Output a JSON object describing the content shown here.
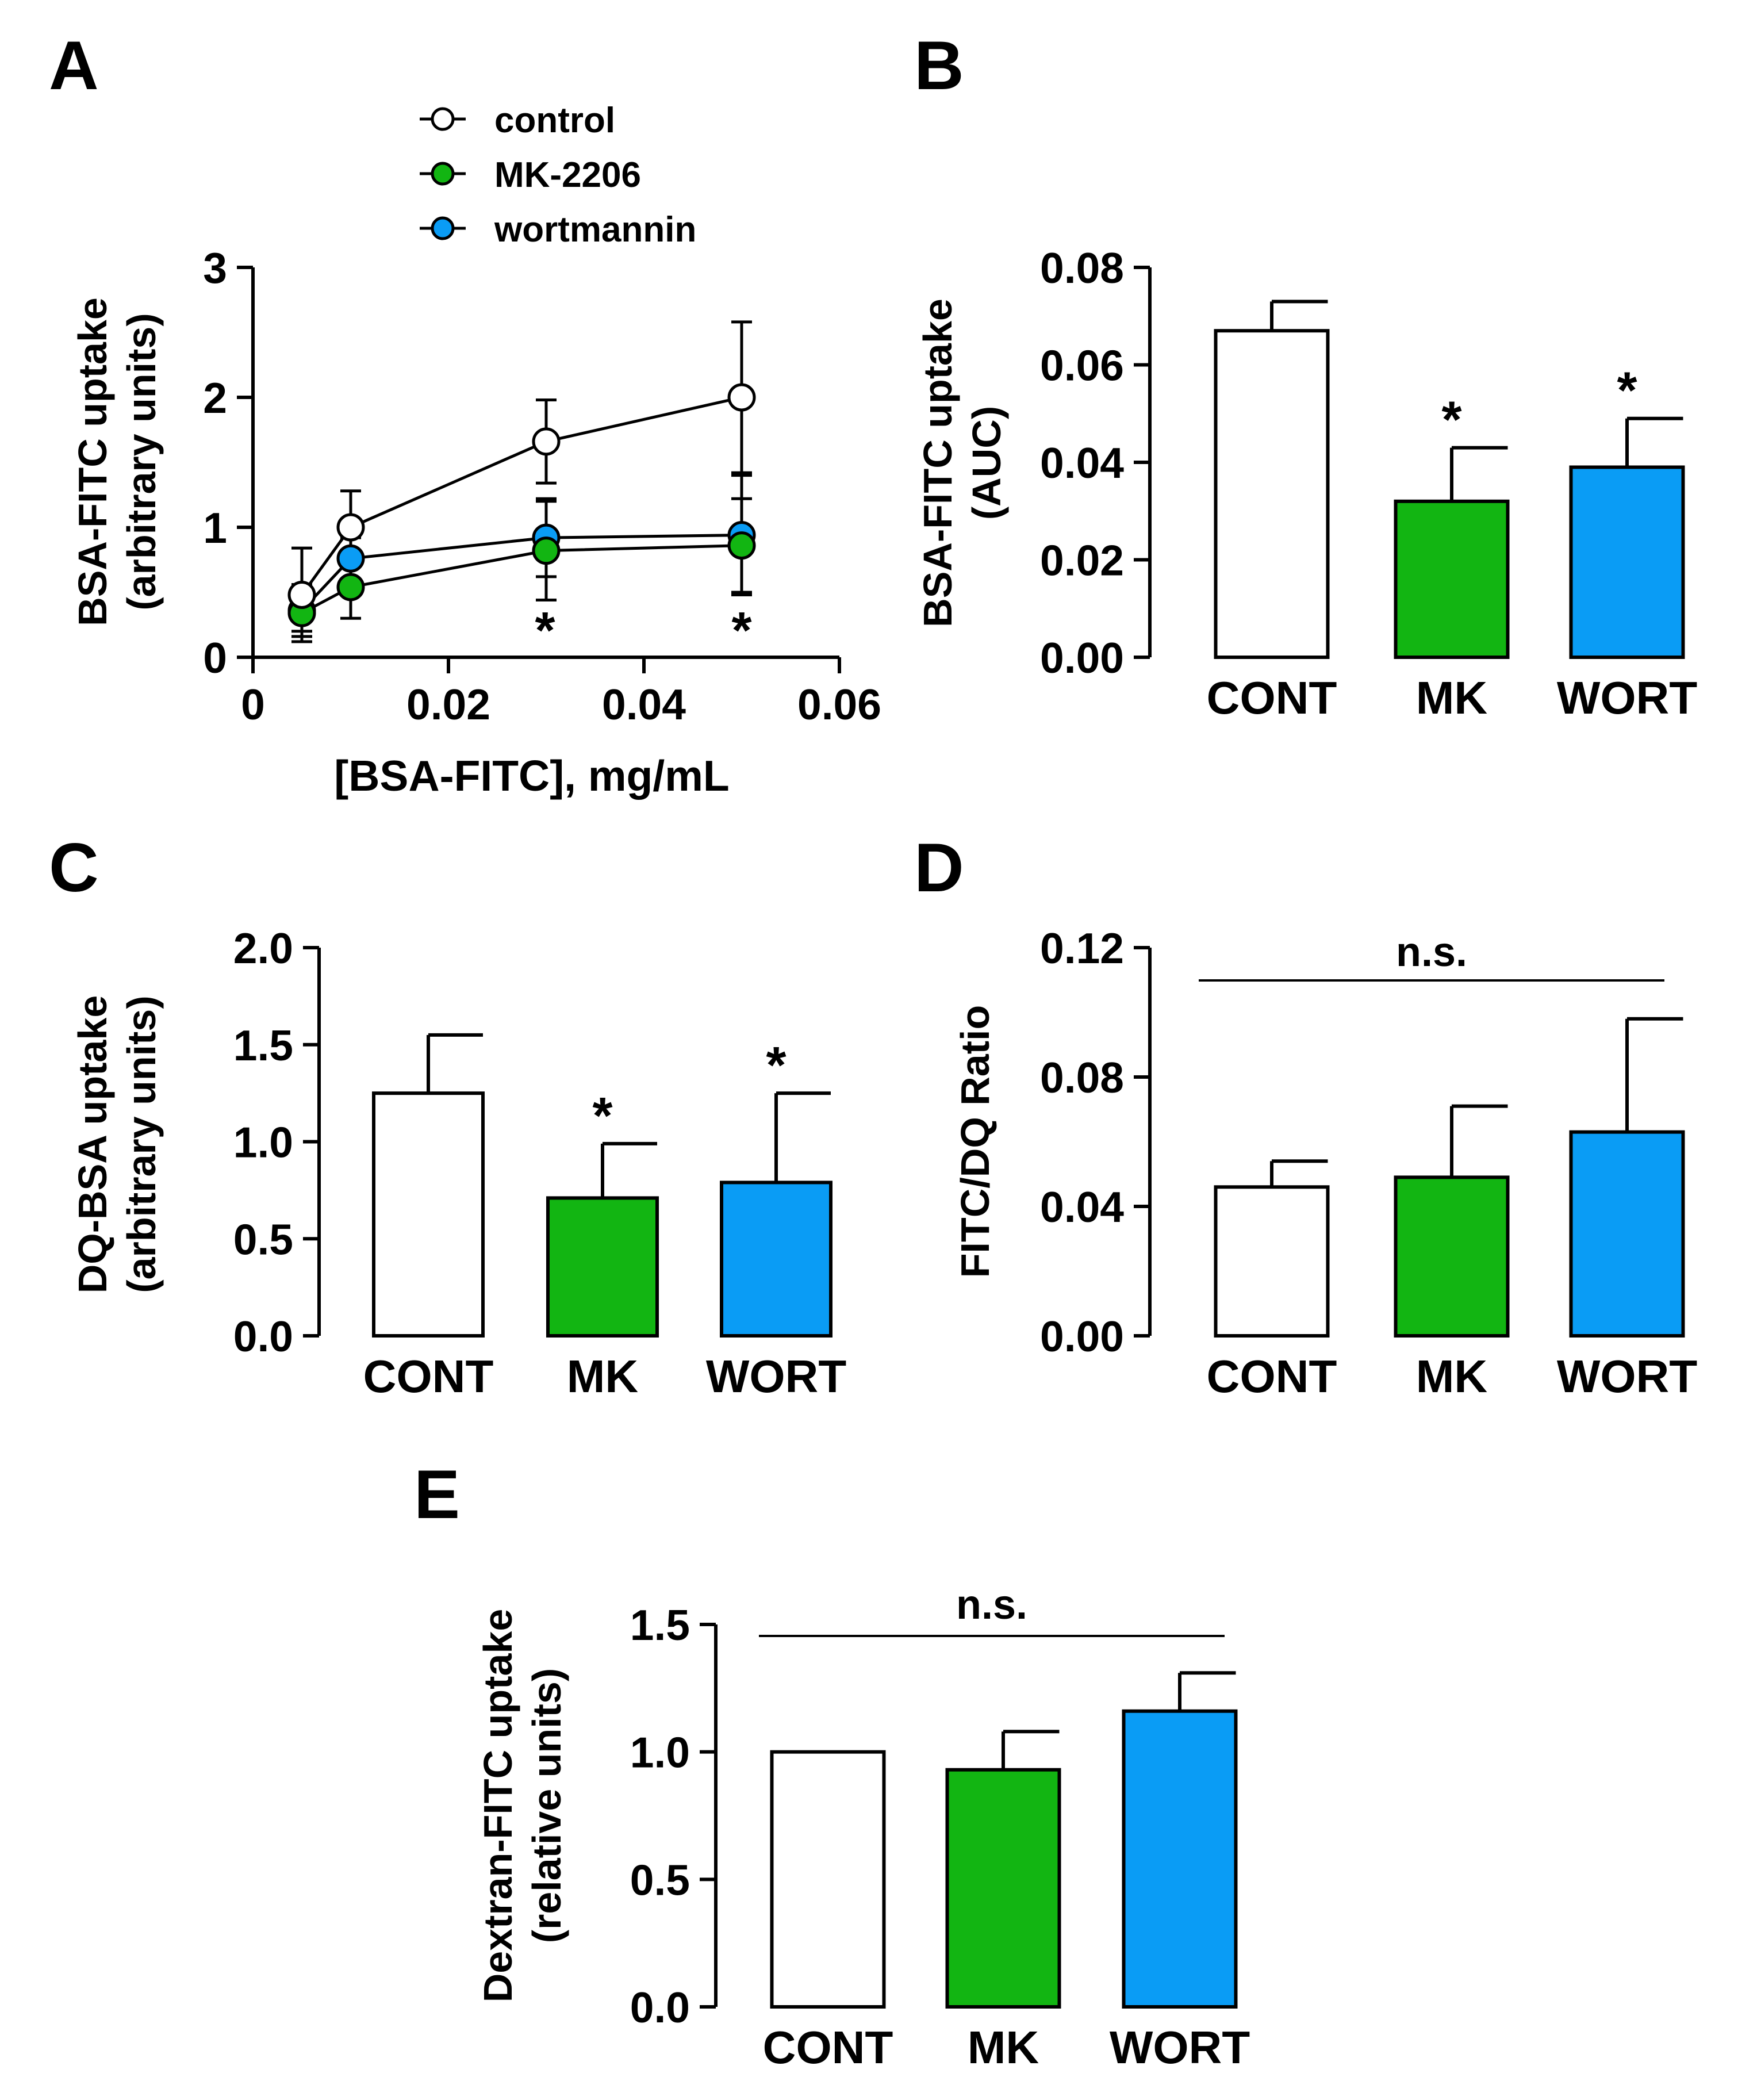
{
  "colors": {
    "control": "#ffffff",
    "mk": "#12b512",
    "wort": "#0a9cf5",
    "stroke": "#000000"
  },
  "chart_data": [
    {
      "panel": "A",
      "type": "line",
      "xlabel": "[BSA-FITC], mg/mL",
      "ylabel_line1": "BSA-FITC uptake",
      "ylabel_line2": "(arbitrary units)",
      "xlim": [
        0,
        0.06
      ],
      "ylim": [
        0,
        3
      ],
      "xticks": [
        "0",
        "0.02",
        "0.04",
        "0.06"
      ],
      "yticks": [
        "0",
        "1",
        "2",
        "3"
      ],
      "x": [
        0.005,
        0.01,
        0.03,
        0.05
      ],
      "series": [
        {
          "name": "control",
          "values": [
            0.48,
            1.0,
            1.66,
            2.0
          ],
          "err": [
            0.36,
            0.28,
            0.32,
            0.58
          ]
        },
        {
          "name": "MK-2206",
          "values": [
            0.34,
            0.54,
            0.82,
            0.86
          ],
          "err": [
            0.14,
            0.24,
            0.38,
            0.36
          ]
        },
        {
          "name": "wortmannin",
          "values": [
            0.36,
            0.76,
            0.92,
            0.94
          ],
          "err": [
            0.2,
            0.16,
            0.3,
            0.46
          ]
        }
      ],
      "legend": [
        "control",
        "MK-2206",
        "wortmannin"
      ],
      "annotations": [
        "*",
        "*"
      ]
    },
    {
      "panel": "B",
      "type": "bar",
      "ylabel_line1": "BSA-FITC uptake",
      "ylabel_line2": "(AUC)",
      "ylim": [
        0,
        0.08
      ],
      "yticks": [
        "0.00",
        "0.02",
        "0.04",
        "0.06",
        "0.08"
      ],
      "categories": [
        "CONT",
        "MK",
        "WORT"
      ],
      "values": [
        0.067,
        0.032,
        0.039
      ],
      "err": [
        0.006,
        0.011,
        0.01
      ],
      "annotations": [
        "",
        "*",
        "*"
      ]
    },
    {
      "panel": "C",
      "type": "bar",
      "ylabel_line1": "DQ-BSA uptake",
      "ylabel_line2": "(arbitrary units)",
      "ylim": [
        0,
        2.0
      ],
      "yticks": [
        "0.0",
        "0.5",
        "1.0",
        "1.5",
        "2.0"
      ],
      "categories": [
        "CONT",
        "MK",
        "WORT"
      ],
      "values": [
        1.25,
        0.71,
        0.79
      ],
      "err": [
        0.3,
        0.28,
        0.46
      ],
      "annotations": [
        "",
        "*",
        "*"
      ]
    },
    {
      "panel": "D",
      "type": "bar",
      "ylabel_line1": "FITC/DQ Ratio",
      "ylabel_line2": "",
      "ylim": [
        0,
        0.12
      ],
      "yticks": [
        "0.00",
        "0.04",
        "0.08",
        "0.12"
      ],
      "categories": [
        "CONT",
        "MK",
        "WORT"
      ],
      "values": [
        0.046,
        0.049,
        0.063
      ],
      "err": [
        0.008,
        0.022,
        0.035
      ],
      "significance": "n.s."
    },
    {
      "panel": "E",
      "type": "bar",
      "ylabel_line1": "Dextran-FITC uptake",
      "ylabel_line2": "(relative units)",
      "ylim": [
        0,
        1.5
      ],
      "yticks": [
        "0.0",
        "0.5",
        "1.0",
        "1.5"
      ],
      "categories": [
        "CONT",
        "MK",
        "WORT"
      ],
      "values": [
        1.0,
        0.93,
        1.16
      ],
      "err": [
        0.0,
        0.15,
        0.15
      ],
      "significance": "n.s."
    }
  ]
}
